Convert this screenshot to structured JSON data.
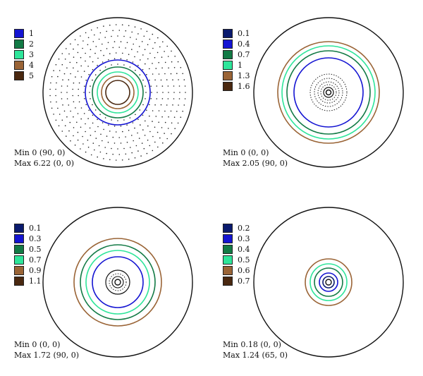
{
  "colors": {
    "circle_outline": "#111111",
    "dark_blue": "#0a1a6e",
    "blue": "#1414d2",
    "dark_green": "#127a45",
    "light_green": "#2ee59a",
    "brown": "#9a6436",
    "dark_brown": "#4a2810"
  },
  "panels": [
    {
      "legend": [
        {
          "label": "1",
          "color": "#1414d2"
        },
        {
          "label": "2",
          "color": "#127a45"
        },
        {
          "label": "3",
          "color": "#2ee59a"
        },
        {
          "label": "4",
          "color": "#9a6436"
        },
        {
          "label": "5",
          "color": "#4a2810"
        }
      ],
      "min_text": "Min 0 (90, 0)",
      "max_text": "Max 6.22 (0, 0)"
    },
    {
      "legend": [
        {
          "label": "0.1",
          "color": "#0a1a6e"
        },
        {
          "label": "0.4",
          "color": "#1414d2"
        },
        {
          "label": "0.7",
          "color": "#127a45"
        },
        {
          "label": "1",
          "color": "#2ee59a"
        },
        {
          "label": "1.3",
          "color": "#9a6436"
        },
        {
          "label": "1.6",
          "color": "#4a2810"
        }
      ],
      "min_text": "Min 0 (0, 0)",
      "max_text": "Max 2.05 (90, 0)"
    },
    {
      "legend": [
        {
          "label": "0.1",
          "color": "#0a1a6e"
        },
        {
          "label": "0.3",
          "color": "#1414d2"
        },
        {
          "label": "0.5",
          "color": "#127a45"
        },
        {
          "label": "0.7",
          "color": "#2ee59a"
        },
        {
          "label": "0.9",
          "color": "#9a6436"
        },
        {
          "label": "1.1",
          "color": "#4a2810"
        }
      ],
      "min_text": "Min 0 (0, 0)",
      "max_text": "Max 1.72 (90, 0)"
    },
    {
      "legend": [
        {
          "label": "0.2",
          "color": "#0a1a6e"
        },
        {
          "label": "0.3",
          "color": "#1414d2"
        },
        {
          "label": "0.4",
          "color": "#127a45"
        },
        {
          "label": "0.5",
          "color": "#2ee59a"
        },
        {
          "label": "0.6",
          "color": "#9a6436"
        },
        {
          "label": "0.7",
          "color": "#4a2810"
        }
      ],
      "min_text": "Min 0.18 (0, 0)",
      "max_text": "Max 1.24 (65, 0)"
    }
  ]
}
